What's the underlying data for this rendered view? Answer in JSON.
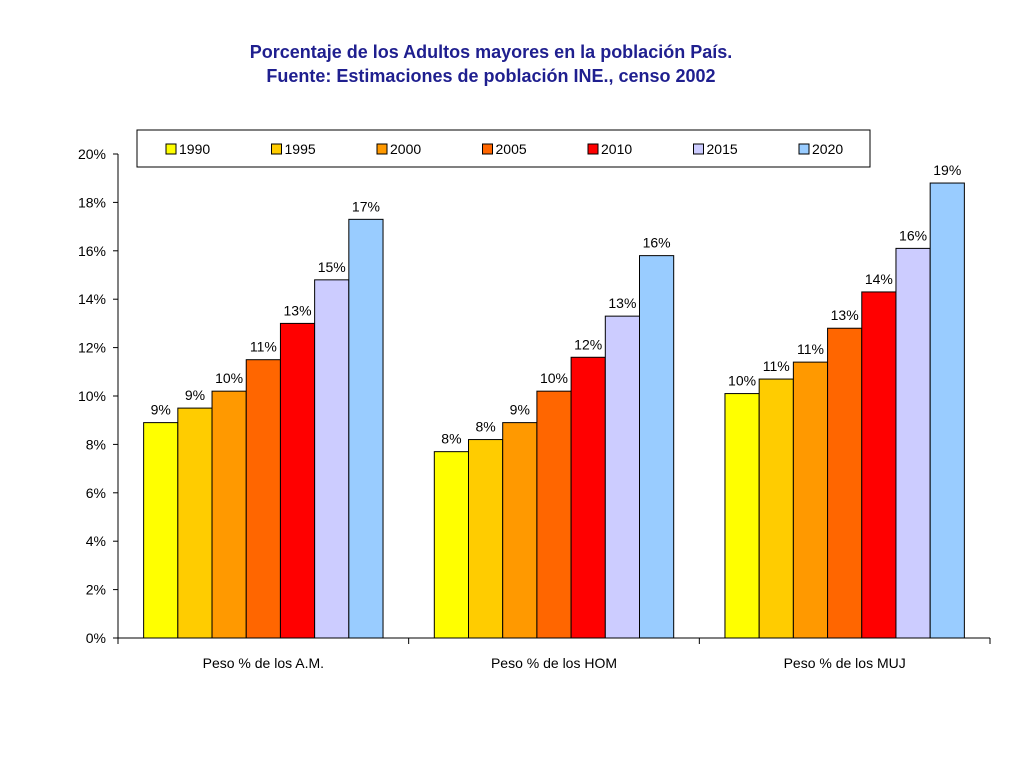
{
  "chart_data": {
    "type": "bar",
    "title": "Porcentaje de los Adultos mayores en la población País.",
    "subtitle": "Fuente: Estimaciones de población INE., censo 2002",
    "xlabel": "",
    "ylabel": "",
    "ylim": [
      0,
      20
    ],
    "yticks": [
      "0%",
      "2%",
      "4%",
      "6%",
      "8%",
      "10%",
      "12%",
      "14%",
      "16%",
      "18%",
      "20%"
    ],
    "grid": false,
    "legend_position": "top",
    "categories": [
      "Peso % de los A.M.",
      "Peso % de los HOM",
      "Peso % de los MUJ"
    ],
    "series": [
      {
        "name": "1990",
        "color": "#ffff00",
        "values": [
          8.9,
          7.7,
          10.1
        ],
        "labels": [
          "9%",
          "8%",
          "10%"
        ]
      },
      {
        "name": "1995",
        "color": "#ffcc00",
        "values": [
          9.5,
          8.2,
          10.7
        ],
        "labels": [
          "9%",
          "8%",
          "11%"
        ]
      },
      {
        "name": "2000",
        "color": "#ff9900",
        "values": [
          10.2,
          8.9,
          11.4
        ],
        "labels": [
          "10%",
          "9%",
          "11%"
        ]
      },
      {
        "name": "2005",
        "color": "#ff6600",
        "values": [
          11.5,
          10.2,
          12.8
        ],
        "labels": [
          "11%",
          "10%",
          "13%"
        ]
      },
      {
        "name": "2010",
        "color": "#ff0000",
        "values": [
          13.0,
          11.6,
          14.3
        ],
        "labels": [
          "13%",
          "12%",
          "14%"
        ]
      },
      {
        "name": "2015",
        "color": "#ccccff",
        "values": [
          14.8,
          13.3,
          16.1
        ],
        "labels": [
          "15%",
          "13%",
          "16%"
        ]
      },
      {
        "name": "2020",
        "color": "#99ccff",
        "values": [
          17.3,
          15.8,
          18.8
        ],
        "labels": [
          "17%",
          "16%",
          "19%"
        ]
      }
    ]
  }
}
